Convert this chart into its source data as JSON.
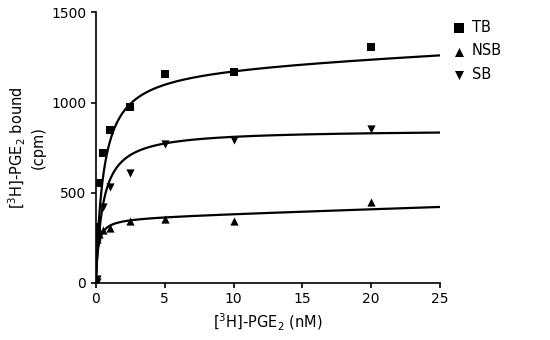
{
  "xlabel": "[$^{3}$H]-PGE$_{2}$ (nM)",
  "ylabel": "[$^{3}$H]-PGE$_{2}$ bound\n(cpm)",
  "xlim": [
    0,
    25
  ],
  "ylim": [
    0,
    1500
  ],
  "xticks": [
    0,
    5,
    10,
    15,
    20,
    25
  ],
  "yticks": [
    0,
    500,
    1000,
    1500
  ],
  "TB_x": [
    0.05,
    0.1,
    0.25,
    0.5,
    1.0,
    2.5,
    5.0,
    10.0,
    20.0
  ],
  "TB_y": [
    280,
    310,
    555,
    720,
    850,
    975,
    1160,
    1170,
    1310
  ],
  "NSB_x": [
    0.05,
    0.1,
    0.25,
    0.5,
    1.0,
    2.5,
    5.0,
    10.0,
    20.0
  ],
  "NSB_y": [
    240,
    260,
    270,
    290,
    305,
    340,
    355,
    345,
    450
  ],
  "SB_x": [
    0.05,
    0.1,
    0.25,
    0.5,
    1.0,
    2.5,
    5.0,
    10.0,
    20.0
  ],
  "SB_y": [
    5,
    20,
    265,
    420,
    530,
    610,
    770,
    790,
    855
  ],
  "TB_Bmax": 1200,
  "TB_Kd": 0.55,
  "TB_NS_slope": 3.5,
  "NSB_Bmax": 360,
  "NSB_Kd": 0.15,
  "NSB_NS_slope": 2.5,
  "SB_Bmax": 850,
  "SB_Kd": 0.5,
  "line_color": "#000000",
  "marker_color": "#000000",
  "background_color": "#ffffff",
  "legend_labels": [
    "TB",
    "NSB",
    "SB"
  ],
  "legend_markers": [
    "s",
    "^",
    "v"
  ]
}
